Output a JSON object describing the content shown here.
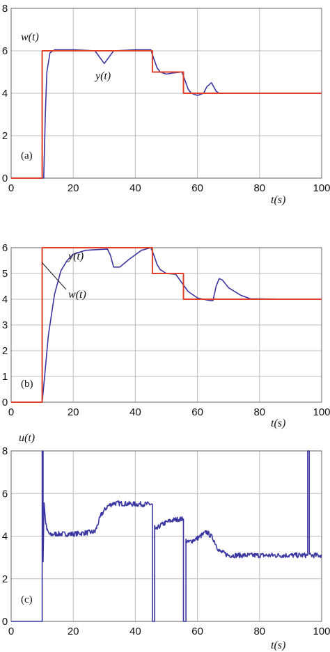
{
  "colors": {
    "reference": "#e0402a",
    "output": "#3a35a0",
    "grid": "#bdbdbd",
    "frame": "#666666"
  },
  "chart_data": [
    {
      "type": "line",
      "panel_label": "(a)",
      "xlabel": "t(s)",
      "ylabel": "w(t)",
      "xlim": [
        0,
        100
      ],
      "ylim": [
        0,
        8
      ],
      "xticks": [
        "0",
        "20",
        "40",
        "60",
        "80",
        "100"
      ],
      "yticks": [
        "0",
        "2",
        "4",
        "6",
        "8"
      ],
      "grid": true,
      "annotations": [
        {
          "text": "y(t)"
        }
      ],
      "series": [
        {
          "name": "w(t)",
          "color": "#e0402a",
          "x": [
            0,
            10,
            10,
            45.5,
            45.5,
            55.5,
            55.5,
            100
          ],
          "y": [
            0,
            0,
            6,
            6,
            5,
            5,
            4,
            4
          ]
        },
        {
          "name": "y(t)",
          "color": "#3a35a0",
          "x": [
            0,
            10.5,
            11,
            11.5,
            12.5,
            14,
            20,
            27,
            29,
            30,
            31.5,
            33,
            40,
            45,
            46,
            47,
            48,
            50,
            52,
            55,
            56,
            57,
            58,
            60,
            62,
            63,
            64.5,
            66,
            67,
            70,
            80,
            90,
            97
          ],
          "y": [
            0,
            0,
            3,
            5,
            5.9,
            6.05,
            6.05,
            6.0,
            5.6,
            5.4,
            5.7,
            6.0,
            6.05,
            6.05,
            5.6,
            5.2,
            5.0,
            4.9,
            4.95,
            5.0,
            4.6,
            4.2,
            4.0,
            3.9,
            4.0,
            4.3,
            4.5,
            4.1,
            4.0,
            4.0,
            4.0,
            4.0,
            4.0
          ]
        }
      ]
    },
    {
      "type": "line",
      "panel_label": "(b)",
      "xlabel": "t(s)",
      "xlim": [
        0,
        100
      ],
      "ylim": [
        0,
        6
      ],
      "xticks": [
        "0",
        "20",
        "40",
        "60",
        "80",
        "100"
      ],
      "yticks": [
        "0",
        "1",
        "2",
        "3",
        "4",
        "5",
        "6"
      ],
      "grid": true,
      "annotations": [
        {
          "text": "y(t)"
        },
        {
          "text": "w(t)"
        }
      ],
      "series": [
        {
          "name": "w(t)",
          "color": "#e0402a",
          "x": [
            0,
            10,
            10,
            45.5,
            45.5,
            55.5,
            55.5,
            100
          ],
          "y": [
            0,
            0,
            6,
            6,
            5,
            5,
            4,
            4
          ]
        },
        {
          "name": "y(t)",
          "color": "#3a35a0",
          "x": [
            0,
            10,
            11,
            12,
            14,
            16,
            18,
            20,
            24,
            31,
            32,
            33,
            35,
            38,
            42,
            45,
            46,
            47,
            48,
            50,
            53,
            57,
            60,
            63,
            64,
            65,
            66,
            67,
            68,
            70,
            74,
            77,
            90,
            97
          ],
          "y": [
            0,
            0,
            1.3,
            2.6,
            4.2,
            5.1,
            5.5,
            5.75,
            5.9,
            5.95,
            5.7,
            5.25,
            5.25,
            5.55,
            5.9,
            6.0,
            5.7,
            5.35,
            5.15,
            5.0,
            4.97,
            4.3,
            4.05,
            3.97,
            3.95,
            3.95,
            4.5,
            4.8,
            4.75,
            4.45,
            4.15,
            4.02,
            4.0,
            4.0
          ]
        }
      ]
    },
    {
      "type": "line",
      "panel_label": "(c)",
      "xlabel": "t(s)",
      "ylabel": "u(t)",
      "xlim": [
        0,
        100
      ],
      "ylim": [
        0,
        8
      ],
      "xticks": [
        "0",
        "20",
        "40",
        "60",
        "80",
        "100"
      ],
      "yticks": [
        "0",
        "2",
        "4",
        "6",
        "8"
      ],
      "grid": true,
      "series": [
        {
          "name": "u(t)",
          "color": "#3a35a0",
          "x": [
            0,
            10,
            10,
            10.3,
            10.3,
            10.6,
            11,
            11.5,
            12.5,
            14,
            20,
            27,
            29,
            31,
            33,
            40,
            45,
            45.5,
            45.5,
            46.2,
            46.2,
            46.5,
            48,
            50,
            52,
            54,
            55.5,
            55.5,
            56.3,
            56.3,
            57,
            60,
            63,
            65,
            67,
            70,
            80,
            90,
            95.5,
            95.5,
            96,
            96,
            100
          ],
          "y": [
            0,
            0,
            8,
            8,
            2.8,
            5.6,
            4.8,
            4.3,
            4.05,
            4.1,
            4.1,
            4.2,
            5.0,
            5.4,
            5.55,
            5.5,
            5.5,
            5.5,
            0,
            0,
            4.5,
            4.25,
            4.5,
            4.65,
            4.75,
            4.8,
            4.8,
            0,
            0,
            3.8,
            3.7,
            3.9,
            4.2,
            3.9,
            3.3,
            3.1,
            3.1,
            3.1,
            3.1,
            8,
            8,
            3.1,
            3.1
          ]
        }
      ]
    }
  ]
}
